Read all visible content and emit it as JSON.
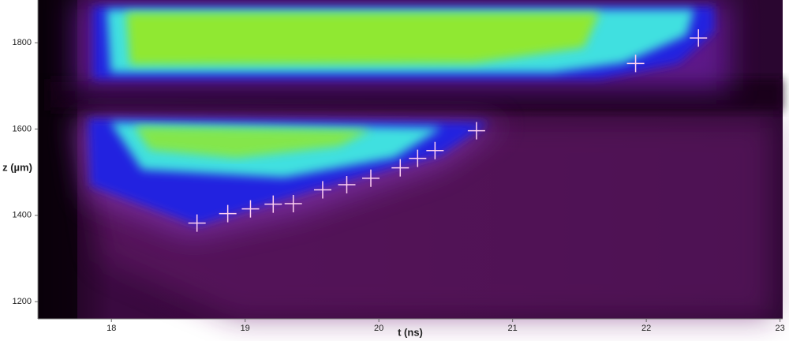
{
  "chart_data": {
    "type": "scatter",
    "xlabel": "t (ns)",
    "ylabel": "z (µm)",
    "xlim": [
      17.45,
      23.02
    ],
    "xticks": [
      18,
      19,
      20,
      21,
      22,
      23
    ],
    "ylim": [
      1160,
      1899
    ],
    "yticks": [
      1200,
      1400,
      1600,
      1800
    ],
    "series": [
      {
        "color": "#ffd0f0",
        "x": [
          18.64,
          18.87,
          19.04,
          19.21,
          19.36,
          19.58,
          19.76,
          19.94,
          20.16,
          20.29,
          20.42,
          20.73,
          21.92,
          22.39
        ],
        "values": [
          1382,
          1404,
          1415,
          1426,
          1427,
          1459,
          1471,
          1486,
          1510,
          1532,
          1550,
          1596,
          1752,
          1811
        ]
      }
    ]
  }
}
